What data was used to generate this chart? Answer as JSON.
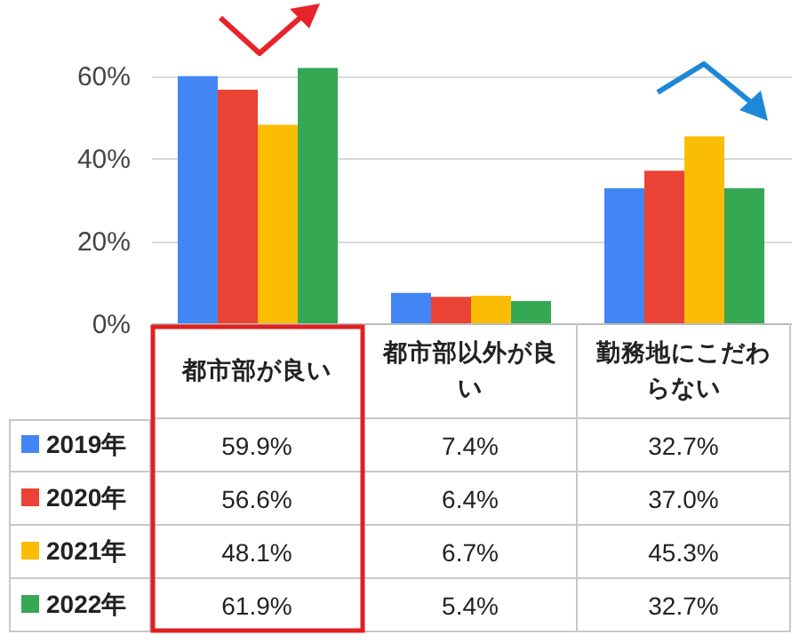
{
  "chart_data": {
    "type": "bar",
    "categories": [
      "都市部が良い",
      "都市部以外が良い",
      "勤務地にこだわらない"
    ],
    "series": [
      {
        "name": "2019年",
        "color": "#4285f4",
        "values": [
          59.9,
          7.4,
          32.7
        ],
        "value_labels": [
          "59.9%",
          "7.4%",
          "32.7%"
        ]
      },
      {
        "name": "2020年",
        "color": "#ea4335",
        "values": [
          56.6,
          6.4,
          37.0
        ],
        "value_labels": [
          "56.6%",
          "6.4%",
          "37.0%"
        ]
      },
      {
        "name": "2021年",
        "color": "#fbbc04",
        "values": [
          48.1,
          6.7,
          45.3
        ],
        "value_labels": [
          "48.1%",
          "6.7%",
          "45.3%"
        ]
      },
      {
        "name": "2022年",
        "color": "#34a853",
        "values": [
          61.9,
          5.4,
          32.7
        ],
        "value_labels": [
          "61.9%",
          "5.4%",
          "32.7%"
        ]
      }
    ],
    "ylim": [
      0,
      62
    ],
    "yticks": [
      {
        "value": 0,
        "label": "0%"
      },
      {
        "value": 20,
        "label": "20%"
      },
      {
        "value": 40,
        "label": "40%"
      },
      {
        "value": 60,
        "label": "60%"
      }
    ],
    "grid": "y",
    "legend": "bottom"
  }
}
